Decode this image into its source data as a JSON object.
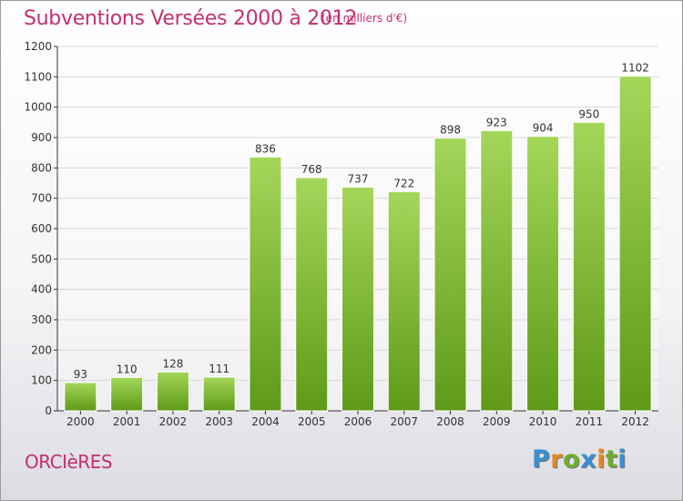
{
  "title": "Subventions Versées 2000 à 2012",
  "subtitle": "(en milliers d'€)",
  "commune": "ORCIèRES",
  "logo": {
    "text": "Proxiti",
    "letters": [
      {
        "ch": "P",
        "color": "#3a8fd0"
      },
      {
        "ch": "r",
        "color": "#e0892a"
      },
      {
        "ch": "o",
        "color": "#6fae2c"
      },
      {
        "ch": "x",
        "color": "#3a8fd0"
      },
      {
        "ch": "i",
        "color": "#e0892a"
      },
      {
        "ch": "t",
        "color": "#6fae2c"
      },
      {
        "ch": "i",
        "color": "#3a8fd0"
      }
    ]
  },
  "colors": {
    "title": "#c4306e",
    "bar_top": "#a4d65a",
    "bar_bottom": "#5e9a18",
    "grid": "#d8d8d8",
    "axis": "#333333"
  },
  "chart_data": {
    "type": "bar",
    "title": "Subventions Versées 2000 à 2012",
    "subtitle": "(en milliers d'€)",
    "xlabel": "",
    "ylabel": "",
    "categories": [
      "2000",
      "2001",
      "2002",
      "2003",
      "2004",
      "2005",
      "2006",
      "2007",
      "2008",
      "2009",
      "2010",
      "2011",
      "2012"
    ],
    "values": [
      93,
      110,
      128,
      111,
      836,
      768,
      737,
      722,
      898,
      923,
      904,
      950,
      1102
    ],
    "ylim": [
      0,
      1200
    ],
    "yticks": [
      0,
      100,
      200,
      300,
      400,
      500,
      600,
      700,
      800,
      900,
      1000,
      1100,
      1200
    ],
    "grid": true,
    "legend": "none"
  }
}
